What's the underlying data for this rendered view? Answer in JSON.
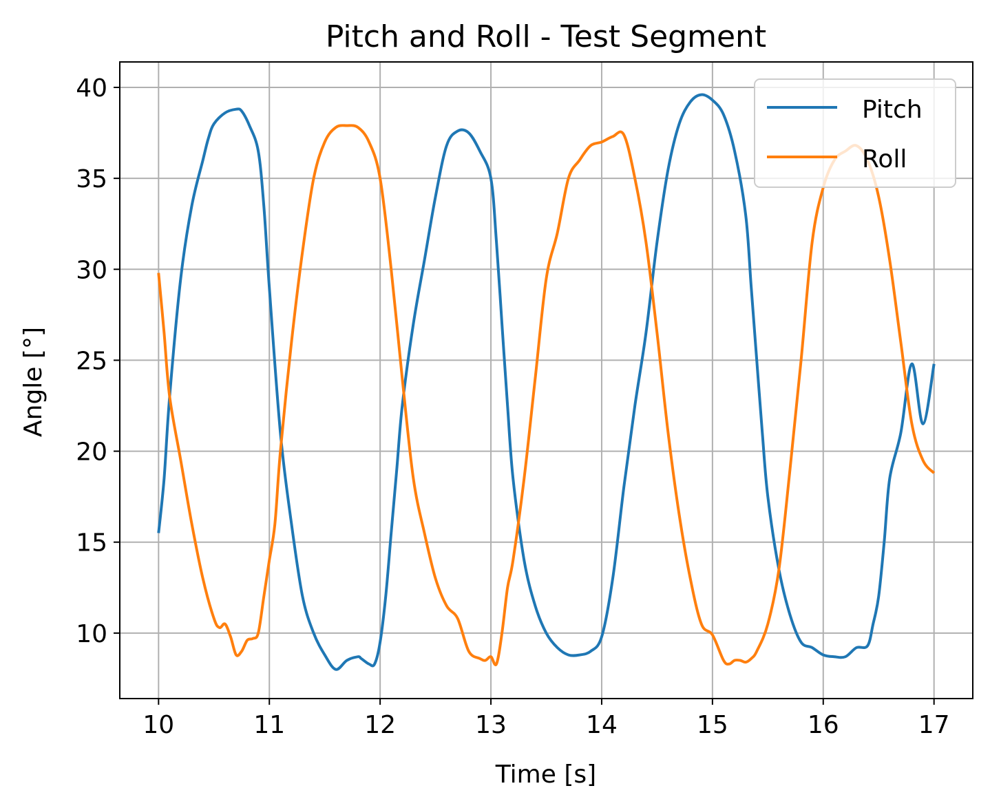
{
  "chart_data": {
    "type": "line",
    "title": "Pitch and Roll - Test Segment",
    "xlabel": "Time [s]",
    "ylabel": "Angle [°]",
    "xlim": [
      9.65,
      17.35
    ],
    "ylim": [
      6.4,
      41.4
    ],
    "xticks": [
      10,
      11,
      12,
      13,
      14,
      15,
      16,
      17
    ],
    "xtick_labels": [
      "10",
      "11",
      "12",
      "13",
      "14",
      "15",
      "16",
      "17"
    ],
    "yticks": [
      10,
      15,
      20,
      25,
      30,
      35,
      40
    ],
    "ytick_labels": [
      "10",
      "15",
      "20",
      "25",
      "30",
      "35",
      "40"
    ],
    "grid": true,
    "legend_position": "upper-right",
    "series": [
      {
        "name": "Pitch",
        "color": "#1f77b4",
        "x": [
          10.0,
          10.05,
          10.1,
          10.2,
          10.3,
          10.4,
          10.45,
          10.5,
          10.6,
          10.7,
          10.75,
          10.82,
          10.9,
          10.95,
          11.0,
          11.1,
          11.2,
          11.3,
          11.4,
          11.5,
          11.6,
          11.7,
          11.8,
          11.83,
          11.9,
          11.95,
          12.0,
          12.05,
          12.1,
          12.15,
          12.2,
          12.3,
          12.4,
          12.5,
          12.6,
          12.7,
          12.8,
          12.9,
          13.0,
          13.05,
          13.1,
          13.15,
          13.2,
          13.3,
          13.4,
          13.5,
          13.6,
          13.7,
          13.8,
          13.9,
          14.0,
          14.1,
          14.2,
          14.3,
          14.4,
          14.5,
          14.6,
          14.7,
          14.8,
          14.9,
          15.0,
          15.1,
          15.2,
          15.3,
          15.35,
          15.4,
          15.45,
          15.5,
          15.6,
          15.7,
          15.8,
          15.9,
          16.0,
          16.1,
          16.2,
          16.3,
          16.4,
          16.45,
          16.5,
          16.55,
          16.6,
          16.7,
          16.8,
          16.9,
          17.0
        ],
        "y": [
          15.5,
          18.5,
          23.0,
          29.5,
          33.5,
          36.0,
          37.2,
          38.0,
          38.6,
          38.8,
          38.7,
          37.9,
          36.5,
          33.5,
          29.0,
          21.0,
          16.0,
          12.0,
          10.0,
          8.8,
          8.0,
          8.5,
          8.7,
          8.6,
          8.3,
          8.3,
          9.5,
          12.0,
          15.5,
          19.0,
          22.5,
          27.0,
          30.5,
          34.0,
          36.8,
          37.6,
          37.5,
          36.5,
          35.0,
          31.5,
          27.0,
          22.5,
          18.5,
          14.0,
          11.5,
          10.0,
          9.2,
          8.8,
          8.8,
          9.0,
          9.8,
          13.0,
          18.0,
          22.5,
          26.5,
          31.5,
          35.5,
          38.0,
          39.2,
          39.6,
          39.3,
          38.5,
          36.5,
          33.0,
          29.0,
          25.0,
          21.0,
          17.5,
          13.5,
          11.0,
          9.5,
          9.2,
          8.8,
          8.7,
          8.7,
          9.2,
          9.3,
          10.5,
          12.0,
          15.0,
          18.5,
          21.0,
          24.8,
          21.5,
          24.8
        ]
      },
      {
        "name": "Roll",
        "color": "#ff7f0e",
        "x": [
          10.0,
          10.05,
          10.1,
          10.2,
          10.3,
          10.4,
          10.5,
          10.55,
          10.6,
          10.65,
          10.7,
          10.75,
          10.8,
          10.85,
          10.9,
          10.95,
          11.0,
          11.05,
          11.1,
          11.2,
          11.3,
          11.4,
          11.5,
          11.6,
          11.7,
          11.8,
          11.9,
          12.0,
          12.1,
          12.2,
          12.3,
          12.4,
          12.5,
          12.6,
          12.7,
          12.8,
          12.9,
          12.95,
          13.0,
          13.05,
          13.1,
          13.15,
          13.2,
          13.3,
          13.4,
          13.5,
          13.6,
          13.7,
          13.8,
          13.9,
          14.0,
          14.1,
          14.2,
          14.3,
          14.4,
          14.5,
          14.6,
          14.7,
          14.8,
          14.9,
          15.0,
          15.1,
          15.15,
          15.2,
          15.25,
          15.3,
          15.35,
          15.4,
          15.5,
          15.6,
          15.7,
          15.8,
          15.9,
          16.0,
          16.1,
          16.2,
          16.3,
          16.4,
          16.5,
          16.6,
          16.7,
          16.8,
          16.9,
          17.0
        ],
        "y": [
          29.8,
          26.5,
          23.0,
          19.5,
          16.0,
          13.0,
          10.8,
          10.3,
          10.5,
          9.8,
          8.8,
          9.0,
          9.6,
          9.7,
          10.0,
          12.0,
          14.0,
          16.0,
          20.0,
          26.0,
          31.0,
          35.0,
          37.0,
          37.8,
          37.9,
          37.8,
          37.0,
          35.0,
          30.0,
          24.0,
          18.5,
          15.5,
          13.0,
          11.5,
          10.8,
          9.0,
          8.6,
          8.5,
          8.7,
          8.3,
          10.0,
          12.5,
          14.0,
          18.5,
          24.0,
          29.5,
          32.0,
          35.0,
          36.0,
          36.8,
          37.0,
          37.3,
          37.4,
          35.0,
          31.5,
          26.5,
          21.0,
          16.5,
          13.0,
          10.5,
          9.9,
          8.5,
          8.3,
          8.5,
          8.5,
          8.4,
          8.6,
          9.0,
          10.5,
          13.5,
          19.0,
          25.0,
          31.5,
          34.5,
          36.0,
          36.5,
          36.8,
          36.0,
          34.0,
          30.5,
          26.0,
          21.5,
          19.5,
          18.8
        ]
      }
    ]
  }
}
